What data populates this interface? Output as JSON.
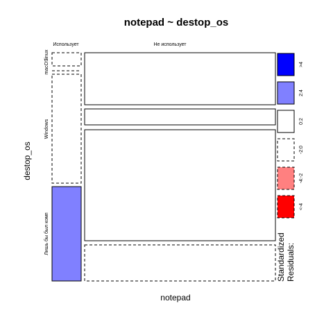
{
  "chart_data": {
    "type": "mosaic",
    "title": "notepad ~ destop_os",
    "xlabel": "notepad",
    "ylabel": "destop_os",
    "x_levels": [
      "Использует",
      "Не использует"
    ],
    "y_levels": [
      "macOS",
      "linux",
      "Windows",
      "Лишь бы был комп"
    ],
    "y_tick_labels": [
      "macOS",
      "linux",
      "Windows",
      "Лишь бы был комп"
    ],
    "cells": [
      {
        "x": "Использует",
        "y": "macOS",
        "proportion": 0.05,
        "residual_class": "<-2:0"
      },
      {
        "x": "Не использует",
        "y": "macOS",
        "proportion": 0.95,
        "residual_class": "0:2"
      },
      {
        "x": "Использует",
        "y": "linux",
        "proportion": 0.01,
        "residual_class": "<-2:0"
      },
      {
        "x": "Не использует",
        "y": "linux",
        "proportion": 0.99,
        "residual_class": "0:2"
      },
      {
        "x": "Использует",
        "y": "Windows",
        "proportion": 0.14,
        "residual_class": "<-2:0"
      },
      {
        "x": "Не использует",
        "y": "Windows",
        "proportion": 0.86,
        "residual_class": "0:2"
      },
      {
        "x": "Использует",
        "y": "Лишь бы был комп",
        "proportion": 0.55,
        "residual_class": "2:4"
      },
      {
        "x": "Не использует",
        "y": "Лишь бы был комп",
        "proportion": 0.45,
        "residual_class": "<-2:0"
      }
    ],
    "legend": {
      "title": "Standardized Residuals:",
      "placement": "right",
      "entries": [
        {
          "label": ">4",
          "color": "#0000ff",
          "dashed": false
        },
        {
          "label": "2:4",
          "color": "#8080ff",
          "dashed": false
        },
        {
          "label": "0:2",
          "color": "#ffffff",
          "dashed": false
        },
        {
          "label": "-2:0",
          "color": "#ffffff",
          "dashed": true
        },
        {
          "label": "-4:-2",
          "color": "#ff8080",
          "dashed": true
        },
        {
          "label": "<-4",
          "color": "#ff0000",
          "dashed": true
        }
      ]
    }
  }
}
